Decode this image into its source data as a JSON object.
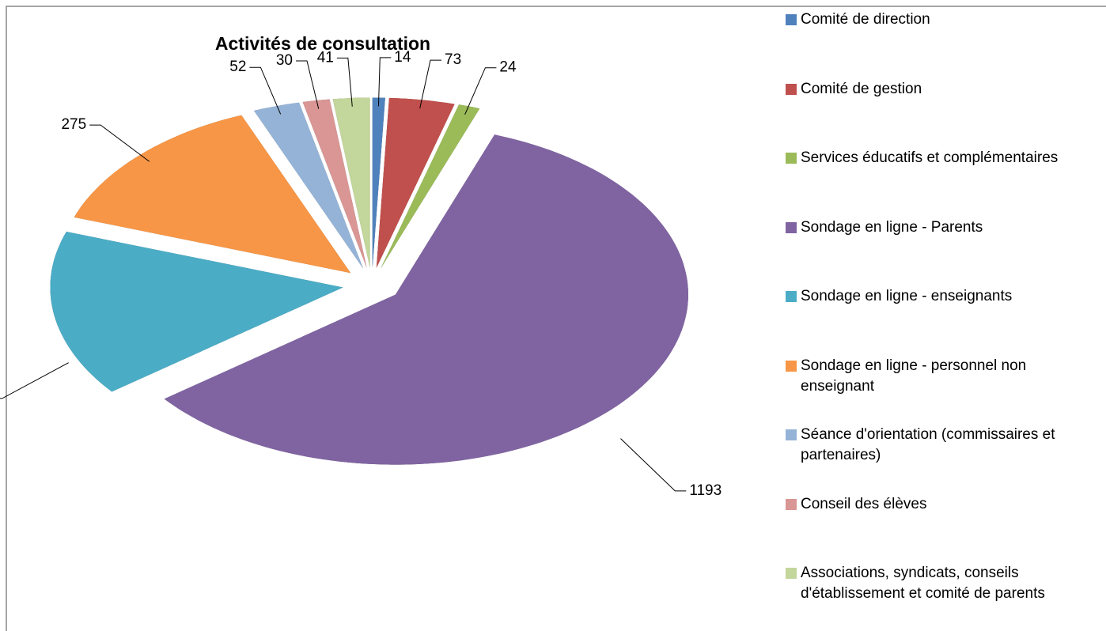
{
  "chart_data": {
    "type": "pie3d",
    "title": "Activités de consultation",
    "categories": [
      "Comité de direction",
      "Comité de gestion",
      "Services éducatifs et complémentaires",
      "Sondage en ligne - Parents",
      "Sondage en ligne - enseignants",
      "Sondage en ligne - personnel non enseignant",
      "Séance d'orientation (commissaires et partenaires)",
      "Conseil des élèves",
      "Associations, syndicats, conseils d'établissement et comité de parents"
    ],
    "values": [
      14,
      73,
      24,
      1193,
      320,
      275,
      52,
      30,
      41
    ],
    "colors": [
      "#4f81bd",
      "#c0504d",
      "#9bbb59",
      "#8064a2",
      "#4bacc6",
      "#f79646",
      "#95b3d7",
      "#d99694",
      "#c3d69b"
    ],
    "legend": "right"
  }
}
